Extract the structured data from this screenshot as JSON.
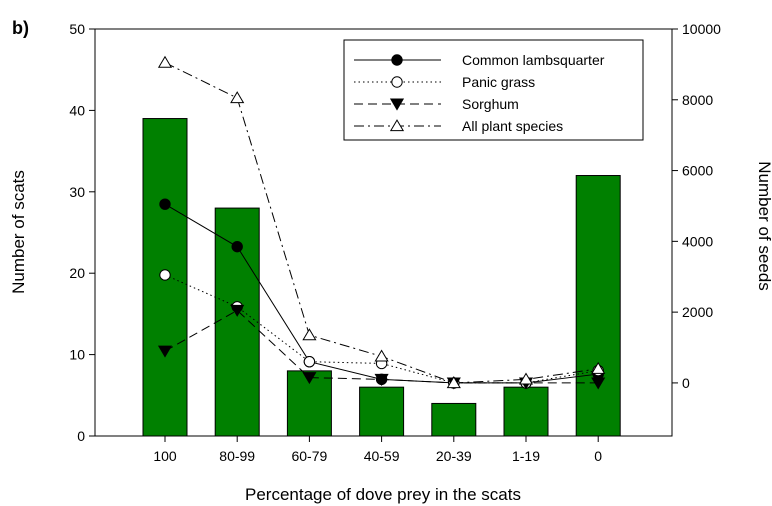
{
  "chart_data": {
    "type": "bar+line",
    "panel_label": "b)",
    "xlabel": "Percentage of dove prey in the scats",
    "ylabel": "Number of scats",
    "y2label": "Number of seeds",
    "categories": [
      "100",
      "80-99",
      "60-79",
      "40-59",
      "20-39",
      "1-19",
      "0"
    ],
    "ylim": [
      0,
      50
    ],
    "yticks": [
      0,
      10,
      20,
      30,
      40,
      50
    ],
    "y2lim": [
      -1500,
      10000
    ],
    "y2ticks": [
      0,
      2000,
      4000,
      6000,
      8000,
      10000
    ],
    "grid": false,
    "legend_position": "top-right",
    "bars": {
      "axis": "left",
      "color": "#008000",
      "values": [
        39,
        28,
        8,
        6,
        4,
        6,
        32
      ]
    },
    "series": [
      {
        "name": "Common lambsquarter",
        "axis": "right",
        "marker": "filled-circle",
        "line": "solid",
        "values": [
          5050,
          3850,
          600,
          100,
          0,
          0,
          250
        ]
      },
      {
        "name": "Panic grass",
        "axis": "right",
        "marker": "open-circle",
        "line": "dotted",
        "values": [
          3050,
          2150,
          600,
          550,
          0,
          0,
          350
        ]
      },
      {
        "name": "Sorghum",
        "axis": "right",
        "marker": "filled-triangle-down",
        "line": "dashed",
        "values": [
          900,
          2050,
          150,
          100,
          0,
          0,
          0
        ]
      },
      {
        "name": "All plant species",
        "axis": "right",
        "marker": "open-triangle-up",
        "line": "dashdot",
        "values": [
          9050,
          8050,
          1350,
          750,
          0,
          100,
          400
        ]
      }
    ]
  }
}
